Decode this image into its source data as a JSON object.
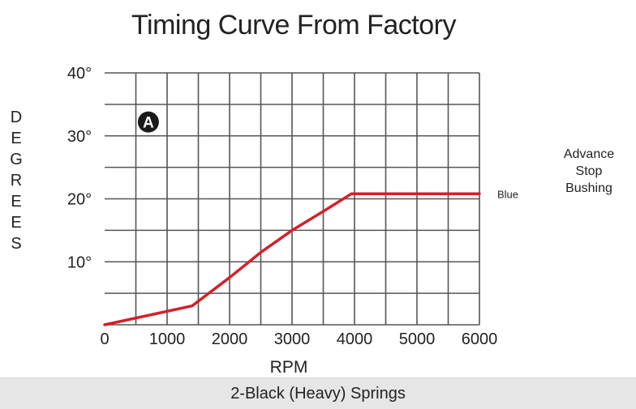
{
  "chart_data": {
    "type": "line",
    "title": "Timing Curve From Factory",
    "xlabel": "RPM",
    "ylabel_letters": [
      "D",
      "E",
      "G",
      "R",
      "E",
      "E",
      "S"
    ],
    "x_ticks": [
      "0",
      "1000",
      "2000",
      "3000",
      "4000",
      "5000",
      "6000"
    ],
    "y_ticks": [
      "10°",
      "20°",
      "30°",
      "40°"
    ],
    "xlim": [
      0,
      6000
    ],
    "ylim": [
      0,
      40
    ],
    "x_grid_step": 500,
    "y_grid_step": 5,
    "grid": true,
    "marker_label": "A",
    "series": [
      {
        "name": "Blue",
        "color": "#d4202a",
        "x": [
          0,
          1400,
          2000,
          2500,
          3000,
          3500,
          3950,
          6000
        ],
        "y": [
          0,
          3,
          7.5,
          11.5,
          15,
          18,
          20.8,
          20.8
        ]
      }
    ],
    "annotation": [
      "Advance",
      "Stop",
      "Bushing"
    ],
    "footer": "2-Black (Heavy) Springs"
  }
}
